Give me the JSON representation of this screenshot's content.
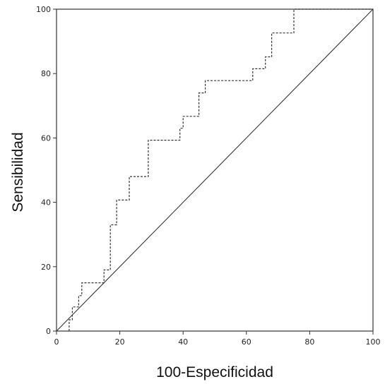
{
  "chart_data": {
    "type": "line",
    "title": "",
    "xlabel": "100-Especificidad",
    "ylabel": "Sensibilidad",
    "xlim": [
      0,
      100
    ],
    "ylim": [
      0,
      100
    ],
    "xticks": [
      "0",
      "20",
      "40",
      "60",
      "80",
      "100"
    ],
    "yticks": [
      "0",
      "20",
      "40",
      "60",
      "80",
      "100"
    ],
    "grid": false,
    "legend": "none",
    "series": [
      {
        "style": "dashed-step",
        "color": "#333333",
        "x": [
          4,
          4,
          5,
          5,
          7,
          7,
          8,
          8,
          15,
          15,
          17,
          17,
          19,
          19,
          23,
          23,
          29,
          29,
          39,
          39,
          40,
          40,
          45,
          45,
          47,
          47,
          62,
          62,
          66,
          66,
          68,
          68,
          75,
          75,
          100
        ],
        "y": [
          0,
          3.5,
          3.5,
          7.5,
          7.5,
          11,
          11,
          15,
          15,
          19,
          19,
          33,
          33,
          40.7,
          40.7,
          48,
          48,
          59.3,
          59.3,
          63,
          63,
          66.7,
          66.7,
          74,
          74,
          77.8,
          77.8,
          81.5,
          81.5,
          85.2,
          85.2,
          92.6,
          92.6,
          100,
          100
        ]
      },
      {
        "style": "solid",
        "color": "#333333",
        "x": [
          0,
          100
        ],
        "y": [
          0,
          100
        ]
      }
    ]
  }
}
